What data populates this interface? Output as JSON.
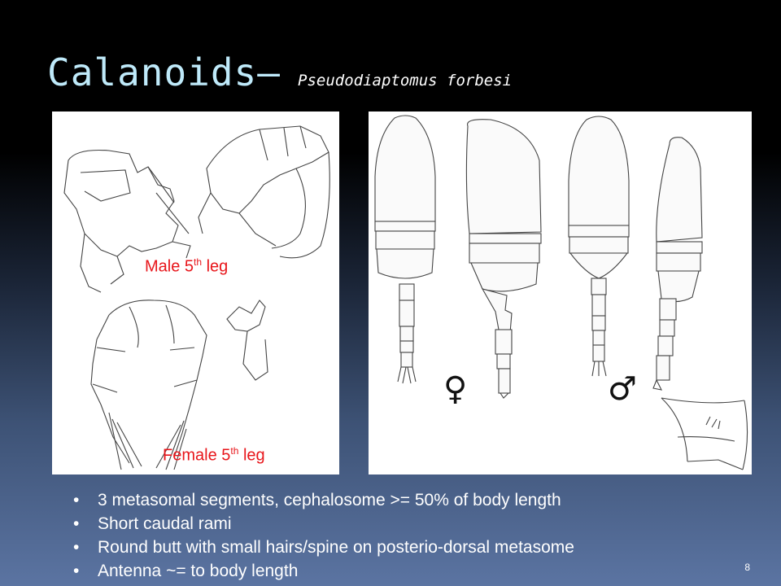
{
  "slide": {
    "title": "Calanoids–",
    "subtitle": "Pseudodiaptomus forbesi",
    "page_number": "8"
  },
  "left_figure": {
    "male_label": {
      "text": "Male 5",
      "sup": "th",
      "tail": " leg"
    },
    "female_label": {
      "text": "Female 5",
      "sup": "th",
      "tail": " leg"
    }
  },
  "right_figure": {
    "female_symbol": "♀",
    "male_symbol": "♂"
  },
  "bullets": [
    "3 metasomal segments, cephalosome >= 50% of body length",
    "Short caudal rami",
    "Round butt with small hairs/spine on posterio-dorsal metasome",
    "Antenna ~= to body length"
  ],
  "colors": {
    "title": "#bfeafa",
    "label_red": "#e8161b",
    "background_top": "#000000",
    "background_bottom": "#5b74a2"
  }
}
